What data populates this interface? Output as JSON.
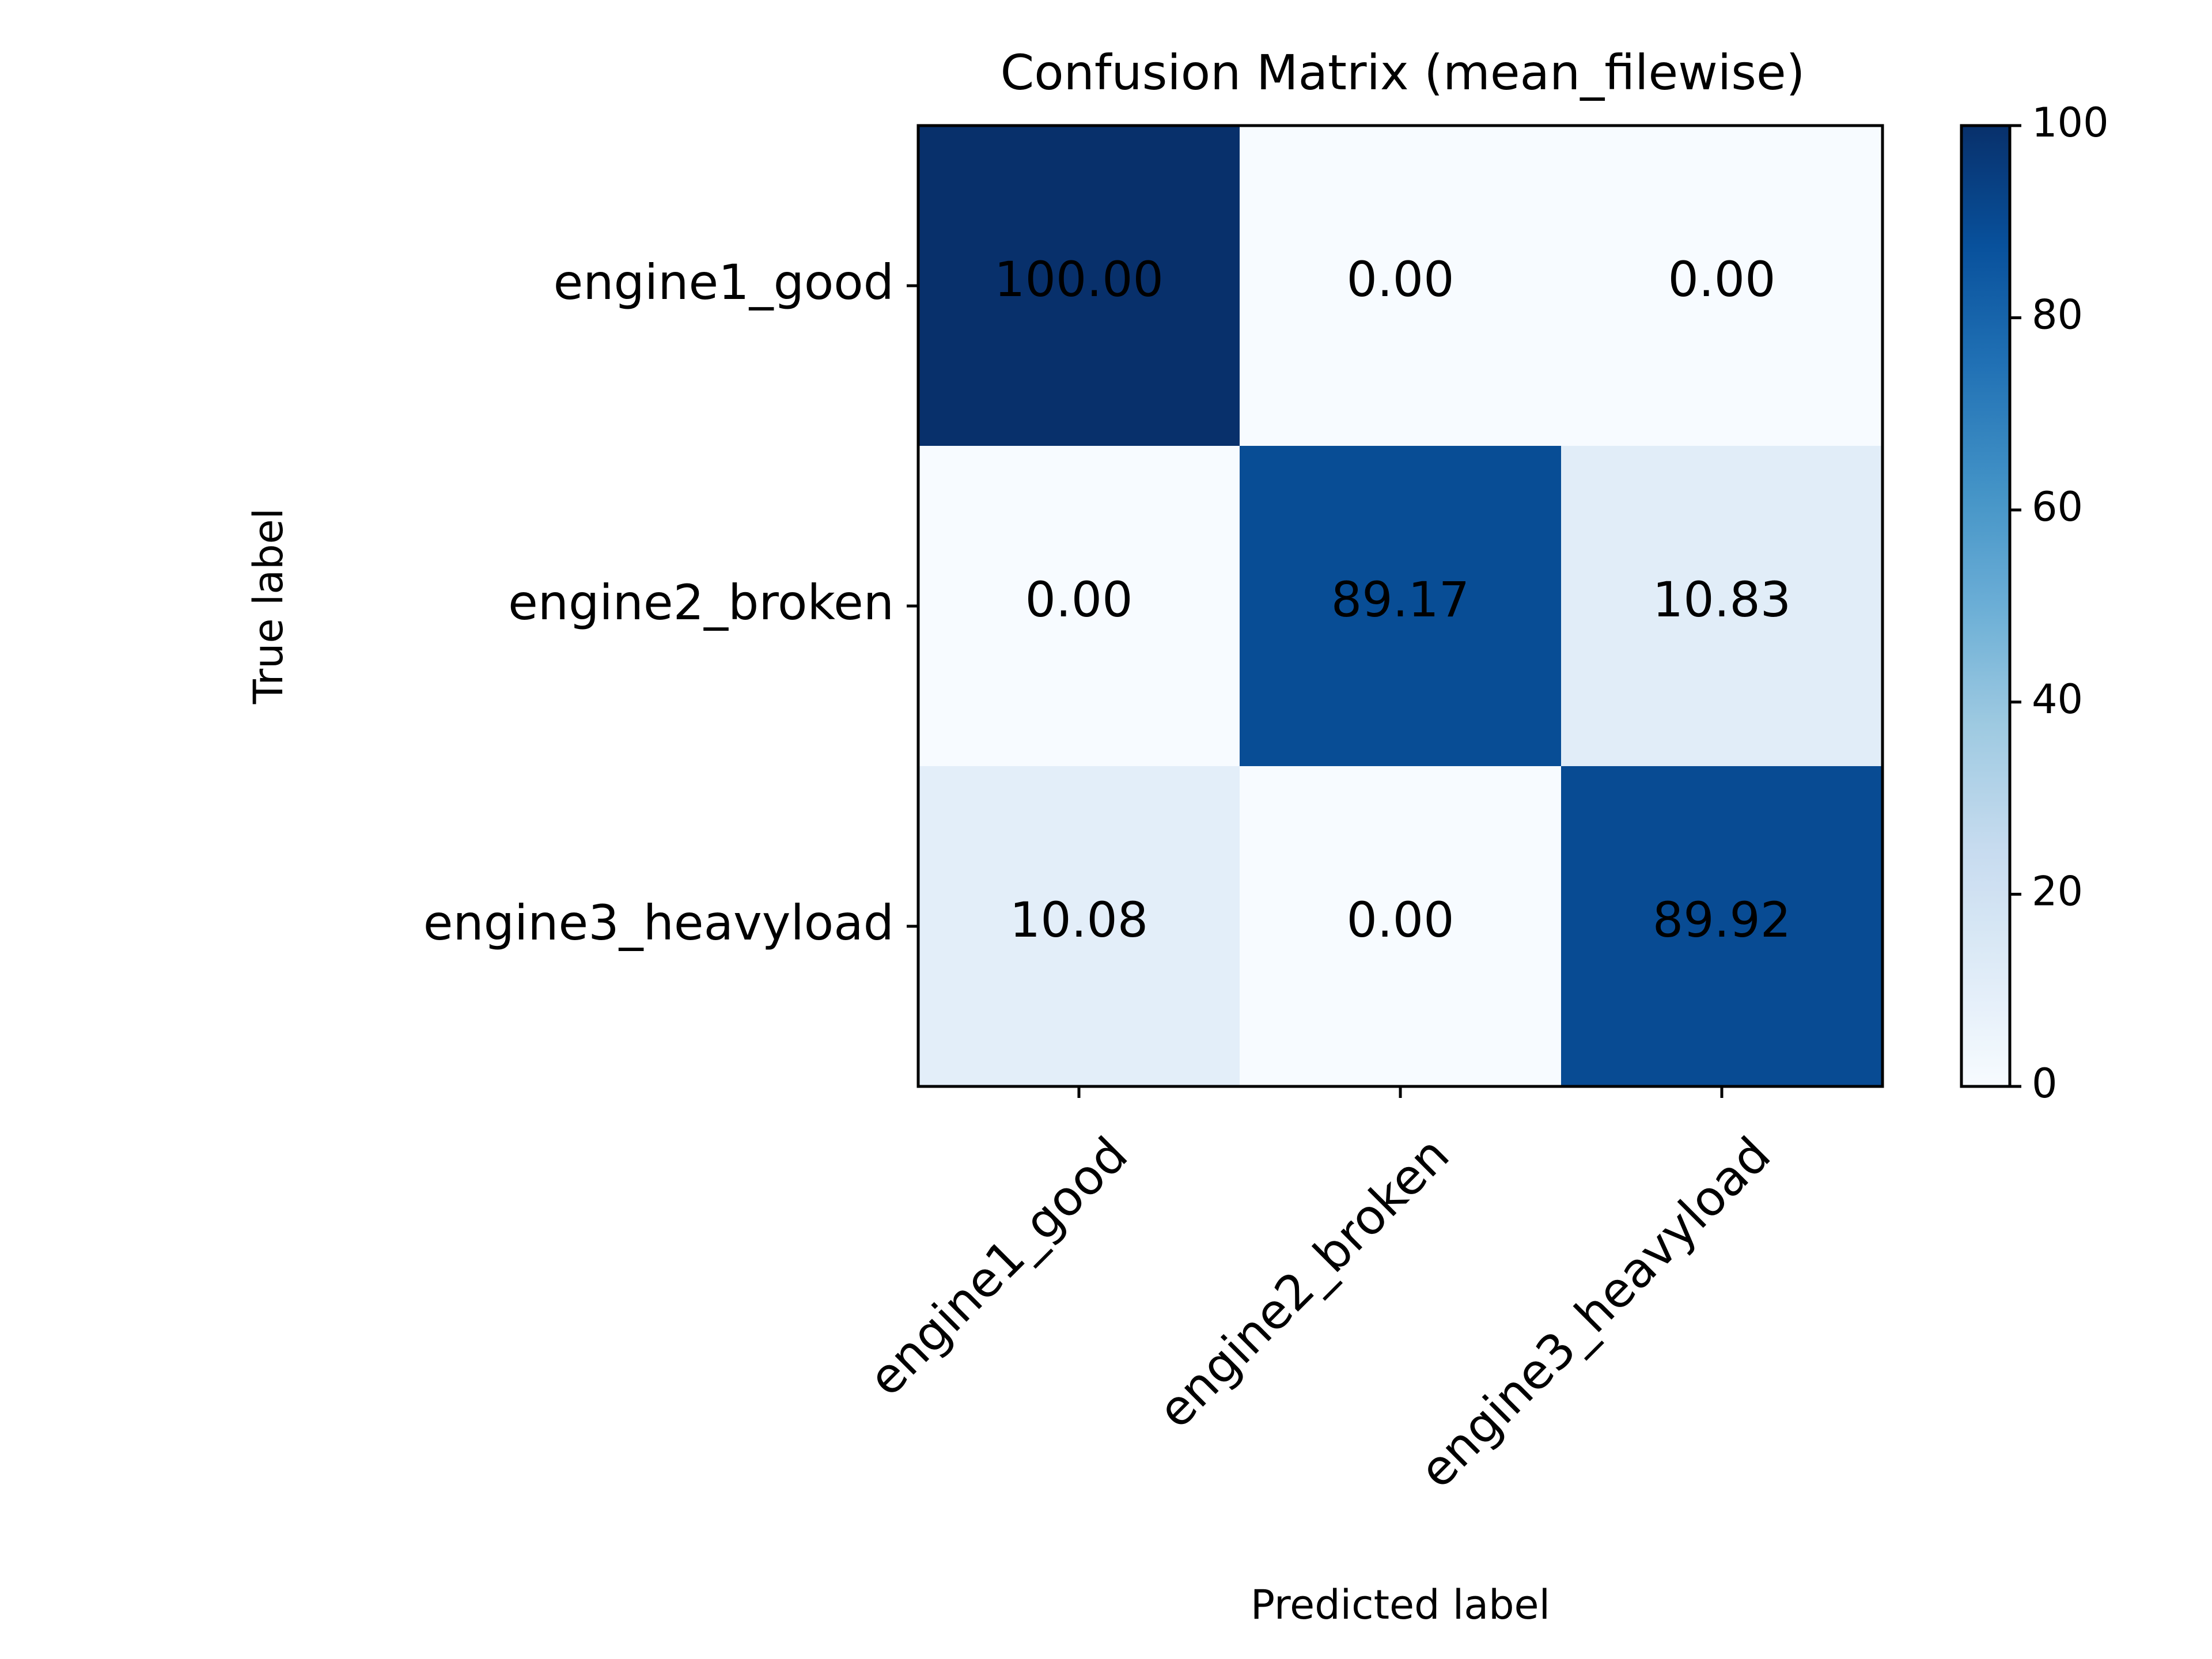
{
  "chart_data": {
    "type": "heatmap",
    "title": "Confusion Matrix (mean_filewise)",
    "xlabel": "Predicted label",
    "ylabel": "True label",
    "x_categories": [
      "engine1_good",
      "engine2_broken",
      "engine3_heavyload"
    ],
    "y_categories": [
      "engine1_good",
      "engine2_broken",
      "engine3_heavyload"
    ],
    "matrix": [
      [
        100.0,
        0.0,
        0.0
      ],
      [
        0.0,
        89.17,
        10.83
      ],
      [
        10.08,
        0.0,
        89.92
      ]
    ],
    "value_format_decimals": 2,
    "colormap": "Blues",
    "color_low": "#f7fbff",
    "color_high": "#08306b",
    "text_color_dark_cells": "#ffffff",
    "text_color_light_cells": "#000000",
    "colorbar": {
      "range": [
        0,
        100
      ],
      "ticks": [
        0,
        20,
        40,
        60,
        80,
        100
      ]
    }
  }
}
